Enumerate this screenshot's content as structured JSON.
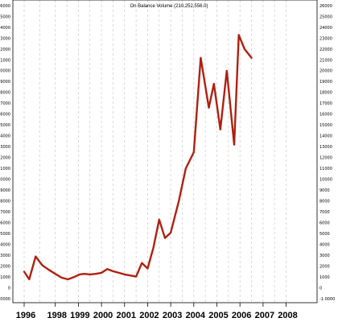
{
  "chart_data": {
    "type": "line",
    "title": "On Balance Volume (210,252,556.0)",
    "xlabel": "",
    "ylabel": "",
    "x_tick_labels": [
      "1996",
      "1998",
      "1999",
      "2000",
      "2001",
      "2002",
      "2003",
      "2004",
      "2005",
      "2006",
      "2007",
      "2008"
    ],
    "y_tick_labels": [
      "26000",
      "25000",
      "24000",
      "23000",
      "22000",
      "21000",
      "20000",
      "19000",
      "18000",
      "17000",
      "16000",
      "15000",
      "14000",
      "13000",
      "12000",
      "11000",
      "10000",
      "9000",
      "8000",
      "7000",
      "6000",
      "5000",
      "4000",
      "3000",
      "2000",
      "1000",
      "0",
      "-1000"
    ],
    "y_extra_label": "-1.0000",
    "xlim": [
      1996,
      2008.9
    ],
    "ylim": [
      -1500,
      26000
    ],
    "grid": true,
    "series": [
      {
        "color": "#b02010",
        "x": [
          1996.0,
          1996.22,
          1996.5,
          1996.78,
          1997.05,
          1997.35,
          1997.62,
          1997.9,
          1998.15,
          1998.4,
          1998.62,
          1998.85,
          1999.1,
          1999.35,
          1999.6,
          1999.85,
          2000.1,
          2000.35,
          2000.6,
          2000.85,
          2001.1,
          2001.35,
          2001.6,
          2001.85,
          2002.1,
          2002.35,
          2002.7,
          2003.0,
          2003.35,
          2003.65,
          2004.0,
          2004.22,
          2004.5,
          2004.78,
          2005.1,
          2005.3,
          2005.55,
          2005.85
        ],
        "values": [
          1500,
          800,
          2900,
          2100,
          1700,
          1300,
          950,
          800,
          1000,
          1250,
          1300,
          1250,
          1300,
          1400,
          1750,
          1550,
          1400,
          1250,
          1150,
          1050,
          2300,
          1800,
          3700,
          6300,
          4600,
          5100,
          8000,
          11000,
          12500,
          21200,
          16600,
          18800,
          14600,
          20000,
          13200,
          23300,
          22000,
          21200
        ]
      }
    ]
  }
}
